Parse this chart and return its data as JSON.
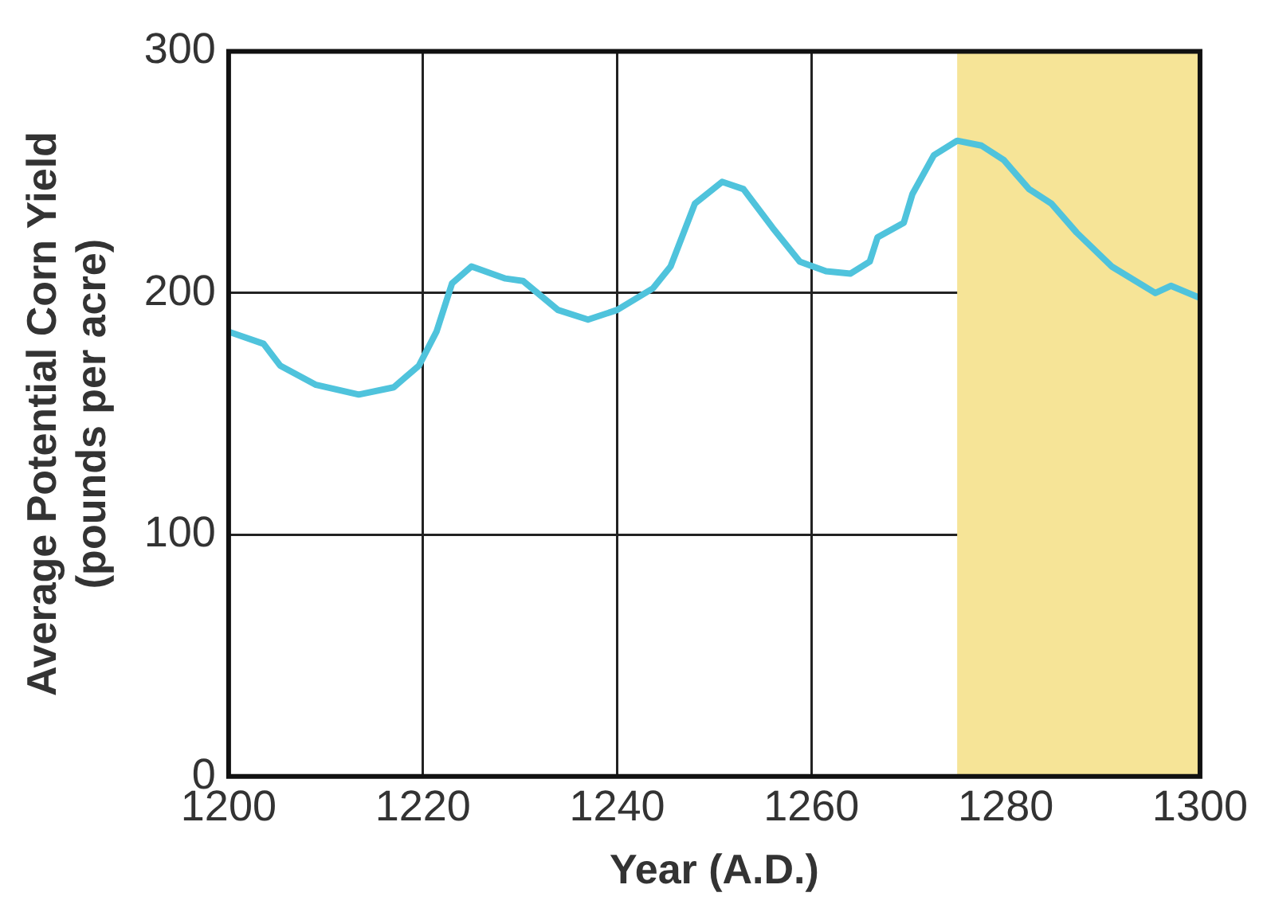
{
  "chart_data": {
    "type": "line",
    "xlabel": "Year (A.D.)",
    "ylabel": "Average Potential Corn Yield\n(pounds per acre)",
    "x": [
      1200,
      1203.6,
      1205.3,
      1209,
      1213.4,
      1217,
      1219.6,
      1221.4,
      1223,
      1225,
      1228.5,
      1230.3,
      1233.9,
      1237,
      1240,
      1243.7,
      1245.5,
      1248,
      1250.8,
      1253,
      1256,
      1258.8,
      1261.5,
      1264,
      1266,
      1266.8,
      1269.5,
      1270.4,
      1272.6,
      1275,
      1277.5,
      1279.8,
      1282.4,
      1284.7,
      1287.3,
      1290.9,
      1295.4,
      1297,
      1300
    ],
    "series": [
      {
        "color": "#4fc3dc",
        "values": [
          184,
          179,
          170,
          162,
          158,
          161,
          170,
          184,
          204,
          211,
          206,
          205,
          193,
          189,
          193,
          202,
          211,
          237,
          246,
          243,
          227,
          213,
          209,
          208,
          213,
          223,
          229,
          241,
          257,
          263,
          261,
          255,
          243,
          237,
          225,
          211,
          200,
          203,
          198
        ]
      }
    ],
    "xlim": [
      1200,
      1300
    ],
    "xticks": [
      1200,
      1220,
      1240,
      1260,
      1280,
      1300
    ],
    "ylim": [
      0,
      300
    ],
    "yticks": [
      0,
      100,
      200,
      300
    ],
    "grid": true,
    "bands": [
      {
        "axis": "x",
        "from": 1275,
        "to": 1300,
        "color": "#f6e497"
      }
    ]
  }
}
